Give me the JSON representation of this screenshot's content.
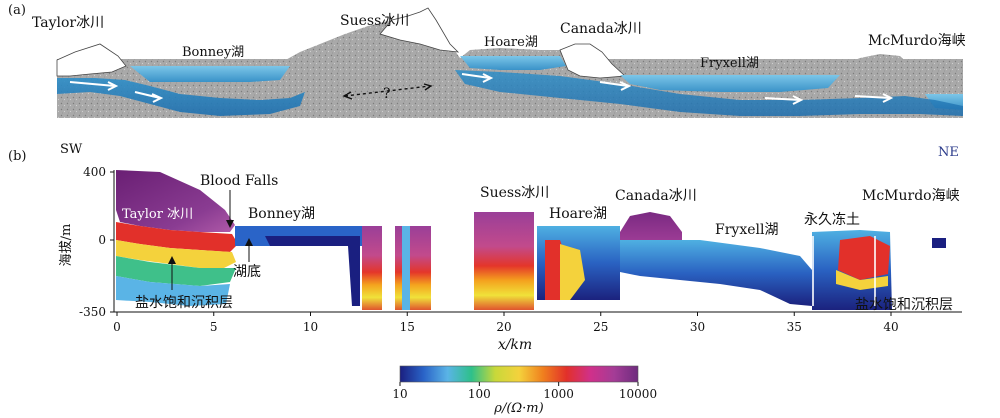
{
  "panel_a": {
    "tag": "(a)",
    "labels": {
      "taylor": "Taylor冰川",
      "bonney": "Bonney湖",
      "suess": "Suess冰川",
      "hoare": "Hoare湖",
      "canada": "Canada冰川",
      "fryxell": "Fryxell湖",
      "mcmurdo": "McMurdo海峡",
      "unknown": "?"
    }
  },
  "panel_b": {
    "tag": "(b)",
    "sw": "SW",
    "ne": "NE",
    "ylabel": "海拔/m",
    "xlabel": "x/km",
    "y_ticks": [
      "400",
      "0",
      "-350"
    ],
    "x_ticks": [
      "0",
      "5",
      "10",
      "15",
      "20",
      "25",
      "30",
      "35",
      "40"
    ],
    "labels": {
      "blood_falls": "Blood Falls",
      "taylor": "Taylor 冰川",
      "bonney": "Bonney湖",
      "lakebed": "湖底",
      "brine_left": "盐水饱和沉积层",
      "suess": "Suess冰川",
      "hoare": "Hoare湖",
      "canada": "Canada冰川",
      "fryxell": "Fryxell湖",
      "permafrost": "永久冻土",
      "mcmurdo": "McMurdo海峡",
      "brine_right": "盐水饱和沉积层"
    }
  },
  "colorbar": {
    "ticks": [
      "10",
      "100",
      "1000",
      "10000"
    ],
    "label": "ρ/(Ω·m)",
    "log_scale": true,
    "colors": [
      "#1a1f80",
      "#2a64c8",
      "#5ab4e6",
      "#2ec08a",
      "#c8d83a",
      "#f4d23c",
      "#f0801e",
      "#e2302a",
      "#d0308a",
      "#a43c96",
      "#6e2c7e"
    ]
  }
}
